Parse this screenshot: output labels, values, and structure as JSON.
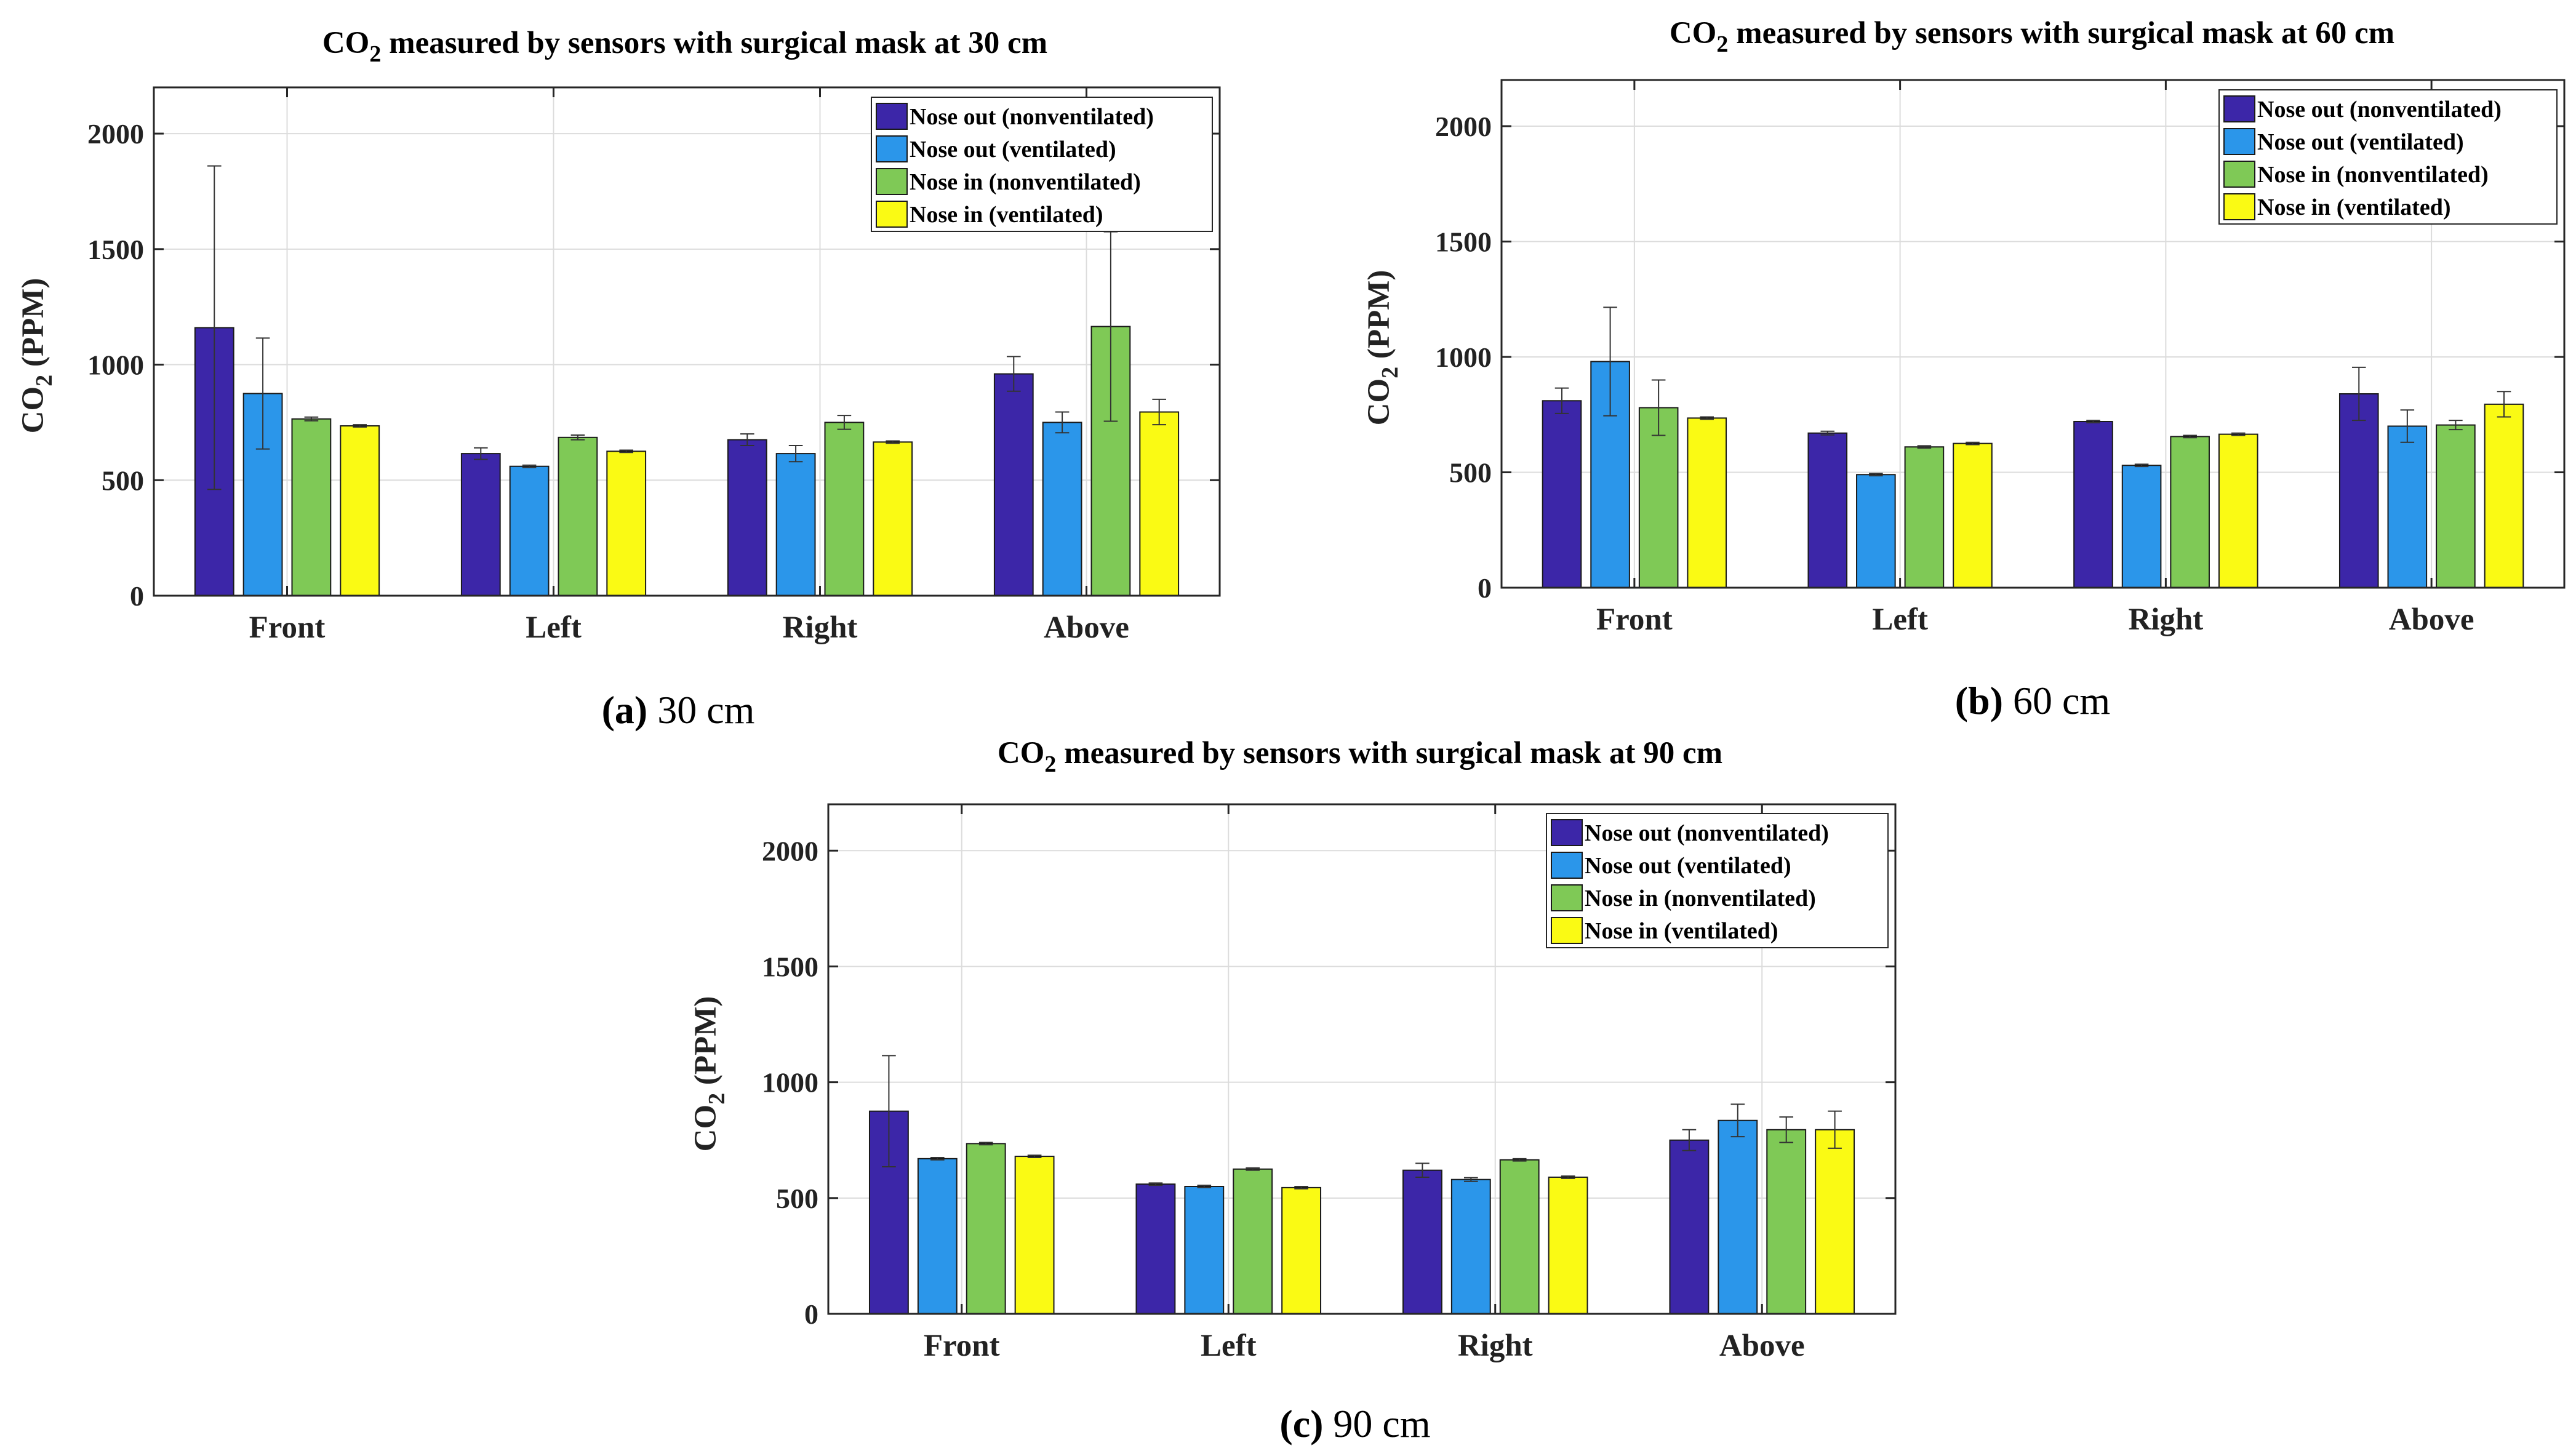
{
  "figure": {
    "title_prefix": "CO",
    "title_subscript": "2",
    "ylabel_prefix": "CO",
    "ylabel_subscript": "2",
    "ylabel_suffix": " (PPM)"
  },
  "colors": {
    "series": [
      "#3c26a8",
      "#2b96ea",
      "#7fc956",
      "#fafa14"
    ],
    "grid": "#dcdcdc",
    "axis": "#262626",
    "errorbar": "#333333"
  },
  "chart_data": [
    {
      "type": "bar",
      "title_suffix": " measured by sensors with surgical mask at 30 cm",
      "caption_letter": "(a)",
      "caption_text": " 30 cm",
      "categories": [
        "Front",
        "Left",
        "Right",
        "Above"
      ],
      "ylim": [
        0,
        2200
      ],
      "yticks": [
        0,
        500,
        1000,
        1500,
        2000
      ],
      "grid": true,
      "legend_placement": "top-right",
      "series": [
        {
          "name": "Nose out (nonventilated)",
          "values": [
            1160,
            615,
            675,
            960
          ],
          "errors": [
            700,
            25,
            25,
            75
          ]
        },
        {
          "name": "Nose out (ventilated)",
          "values": [
            875,
            560,
            615,
            750
          ],
          "errors": [
            240,
            5,
            35,
            45
          ]
        },
        {
          "name": "Nose in (nonventilated)",
          "values": [
            765,
            685,
            750,
            1165
          ],
          "errors": [
            8,
            10,
            30,
            410
          ]
        },
        {
          "name": "Nose in (ventilated)",
          "values": [
            735,
            625,
            665,
            795
          ],
          "errors": [
            5,
            5,
            5,
            55
          ]
        }
      ]
    },
    {
      "type": "bar",
      "title_suffix": " measured by sensors with surgical mask at 60 cm",
      "caption_letter": "(b)",
      "caption_text": " 60 cm",
      "categories": [
        "Front",
        "Left",
        "Right",
        "Above"
      ],
      "ylim": [
        0,
        2200
      ],
      "yticks": [
        0,
        500,
        1000,
        1500,
        2000
      ],
      "grid": true,
      "legend_placement": "top-right",
      "series": [
        {
          "name": "Nose out (nonventilated)",
          "values": [
            810,
            670,
            720,
            840
          ],
          "errors": [
            55,
            8,
            5,
            115
          ]
        },
        {
          "name": "Nose out (ventilated)",
          "values": [
            980,
            490,
            530,
            700
          ],
          "errors": [
            235,
            5,
            5,
            70
          ]
        },
        {
          "name": "Nose in (nonventilated)",
          "values": [
            780,
            610,
            655,
            705
          ],
          "errors": [
            120,
            5,
            5,
            20
          ]
        },
        {
          "name": "Nose in (ventilated)",
          "values": [
            735,
            625,
            665,
            795
          ],
          "errors": [
            5,
            5,
            5,
            55
          ]
        }
      ]
    },
    {
      "type": "bar",
      "title_suffix": " measured by sensors with surgical mask at 90 cm",
      "caption_letter": "(c)",
      "caption_text": " 90 cm",
      "categories": [
        "Front",
        "Left",
        "Right",
        "Above"
      ],
      "ylim": [
        0,
        2200
      ],
      "yticks": [
        0,
        500,
        1000,
        1500,
        2000
      ],
      "grid": true,
      "legend_placement": "top-right",
      "series": [
        {
          "name": "Nose out (nonventilated)",
          "values": [
            875,
            560,
            620,
            750
          ],
          "errors": [
            240,
            5,
            30,
            45
          ]
        },
        {
          "name": "Nose out (ventilated)",
          "values": [
            670,
            550,
            580,
            835
          ],
          "errors": [
            5,
            5,
            8,
            70
          ]
        },
        {
          "name": "Nose in (nonventilated)",
          "values": [
            735,
            625,
            665,
            795
          ],
          "errors": [
            5,
            5,
            5,
            55
          ]
        },
        {
          "name": "Nose in (ventilated)",
          "values": [
            680,
            545,
            590,
            795
          ],
          "errors": [
            5,
            5,
            5,
            80
          ]
        }
      ]
    }
  ]
}
